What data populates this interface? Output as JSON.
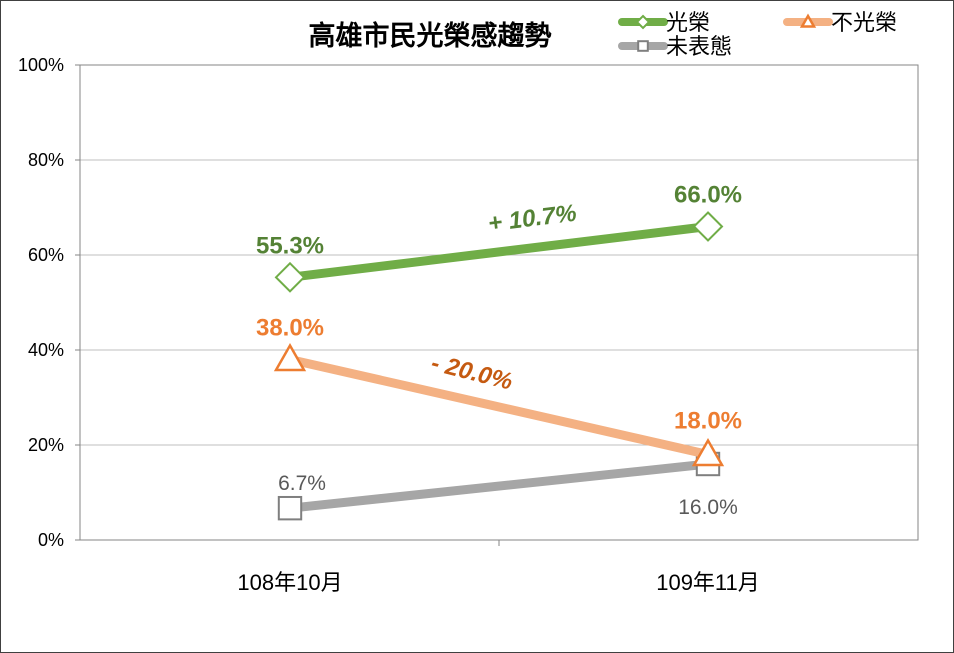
{
  "chart_data": {
    "type": "line",
    "title": "高雄市民光榮感趨勢",
    "categories": [
      "108年10月",
      "109年11月"
    ],
    "ylim": [
      0,
      100
    ],
    "yticks": [
      "0%",
      "20%",
      "40%",
      "60%",
      "80%",
      "100%"
    ],
    "ytick_values": [
      0,
      20,
      40,
      60,
      80,
      100
    ],
    "grid": true,
    "legend_position": "top-right",
    "series": [
      {
        "name": "光榮",
        "values": [
          55.3,
          66.0
        ],
        "labels": [
          "55.3%",
          "66.0%"
        ],
        "line_color": "#70ad47",
        "marker_color": "#70ad47",
        "label_color": "#548235",
        "marker": "diamond"
      },
      {
        "name": "不光榮",
        "values": [
          38.0,
          18.0
        ],
        "labels": [
          "38.0%",
          "18.0%"
        ],
        "line_color": "#f4b183",
        "marker_color": "#ed7d31",
        "label_color": "#ed7d31",
        "marker": "triangle"
      },
      {
        "name": "未表態",
        "values": [
          6.7,
          16.0
        ],
        "labels": [
          "6.7%",
          "16.0%"
        ],
        "line_color": "#a6a6a6",
        "marker_color": "#7f7f7f",
        "label_color": "#595959",
        "marker": "square"
      }
    ],
    "annotations": [
      {
        "text": "+ 10.7%",
        "color": "#548235"
      },
      {
        "text": "- 20.0%",
        "color": "#c55a11"
      }
    ]
  }
}
